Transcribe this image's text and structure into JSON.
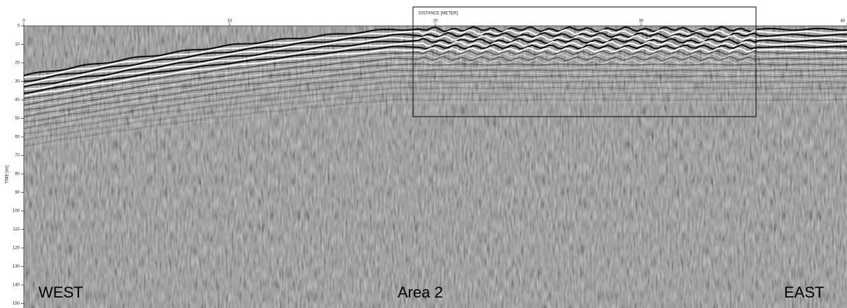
{
  "axes": {
    "x_label": "DISTANCE [METER]",
    "y_label": "TIME [ns]",
    "x_ticks": [
      "0",
      "10",
      "20",
      "30",
      "40"
    ],
    "y_ticks": [
      "0",
      "10",
      "20",
      "30",
      "40",
      "50",
      "60",
      "70",
      "80",
      "90",
      "100",
      "110",
      "120",
      "130",
      "140",
      "150"
    ]
  },
  "labels": {
    "west": "WEST",
    "area": "Area 2",
    "east": "EAST"
  }
}
